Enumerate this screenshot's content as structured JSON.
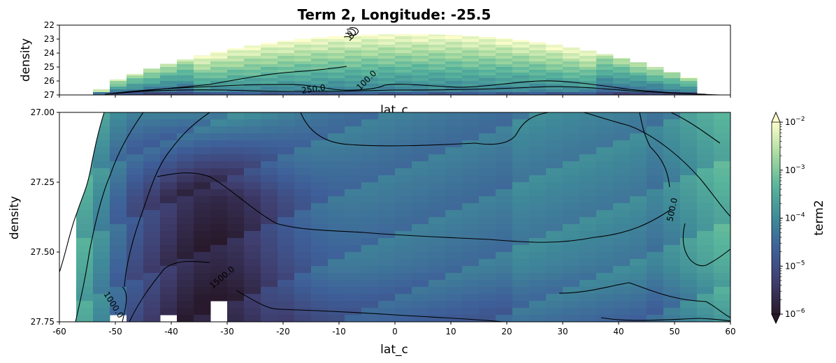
{
  "chart_data": [
    {
      "type": "heatmap",
      "panel": "top",
      "title": "Term 2, Longitude: -25.5",
      "xlabel": "lat_c",
      "ylabel": "density",
      "xlim": [
        -60,
        60
      ],
      "ylim": [
        22,
        27
      ],
      "y_inverted": true,
      "yticks": [
        "22",
        "23",
        "24",
        "25",
        "26",
        "27"
      ],
      "xtick_values": [
        -60,
        -50,
        -40,
        -30,
        -20,
        -10,
        0,
        10,
        20,
        30,
        40,
        50,
        60
      ],
      "colormap": "deep",
      "color_scale": "log",
      "contour_labels": [
        {
          "text": "250.0",
          "lat": -14,
          "density": 26.5
        },
        {
          "text": "100.0",
          "lat": -4.5,
          "density": 25.9
        }
      ]
    },
    {
      "type": "heatmap",
      "panel": "bottom",
      "xlabel": "lat_c",
      "ylabel": "density",
      "xlim": [
        -60,
        60
      ],
      "ylim": [
        27.0,
        27.75
      ],
      "y_inverted": true,
      "yticks": [
        "27.00",
        "27.25",
        "27.50",
        "27.75"
      ],
      "xticks": [
        "-60",
        "-50",
        "-40",
        "-30",
        "-20",
        "-10",
        "0",
        "10",
        "20",
        "30",
        "40",
        "50",
        "60"
      ],
      "xtick_values": [
        -60,
        -50,
        -40,
        -30,
        -20,
        -10,
        0,
        10,
        20,
        30,
        40,
        50,
        60
      ],
      "colormap": "deep",
      "color_scale": "log",
      "contour_labels": [
        {
          "text": "500.0",
          "lat": 49.3,
          "density": 27.33
        },
        {
          "text": "1500.0",
          "lat": -30.5,
          "density": 27.62
        },
        {
          "text": "1000.0",
          "lat": -50,
          "density": 27.7
        }
      ]
    }
  ],
  "colorbar": {
    "label": "term2",
    "ticks": [
      {
        "base": "10",
        "exp": "−2"
      },
      {
        "base": "10",
        "exp": "−3"
      },
      {
        "base": "10",
        "exp": "−4"
      },
      {
        "base": "10",
        "exp": "−5"
      },
      {
        "base": "10",
        "exp": "−6"
      }
    ],
    "range": [
      1e-06,
      0.01
    ],
    "extend": "both"
  },
  "colors": {
    "cmap_stops": [
      "#281a2c",
      "#3f3d6e",
      "#3e5f99",
      "#3f8a99",
      "#58b49b",
      "#a9dba0",
      "#fdfecc"
    ]
  }
}
